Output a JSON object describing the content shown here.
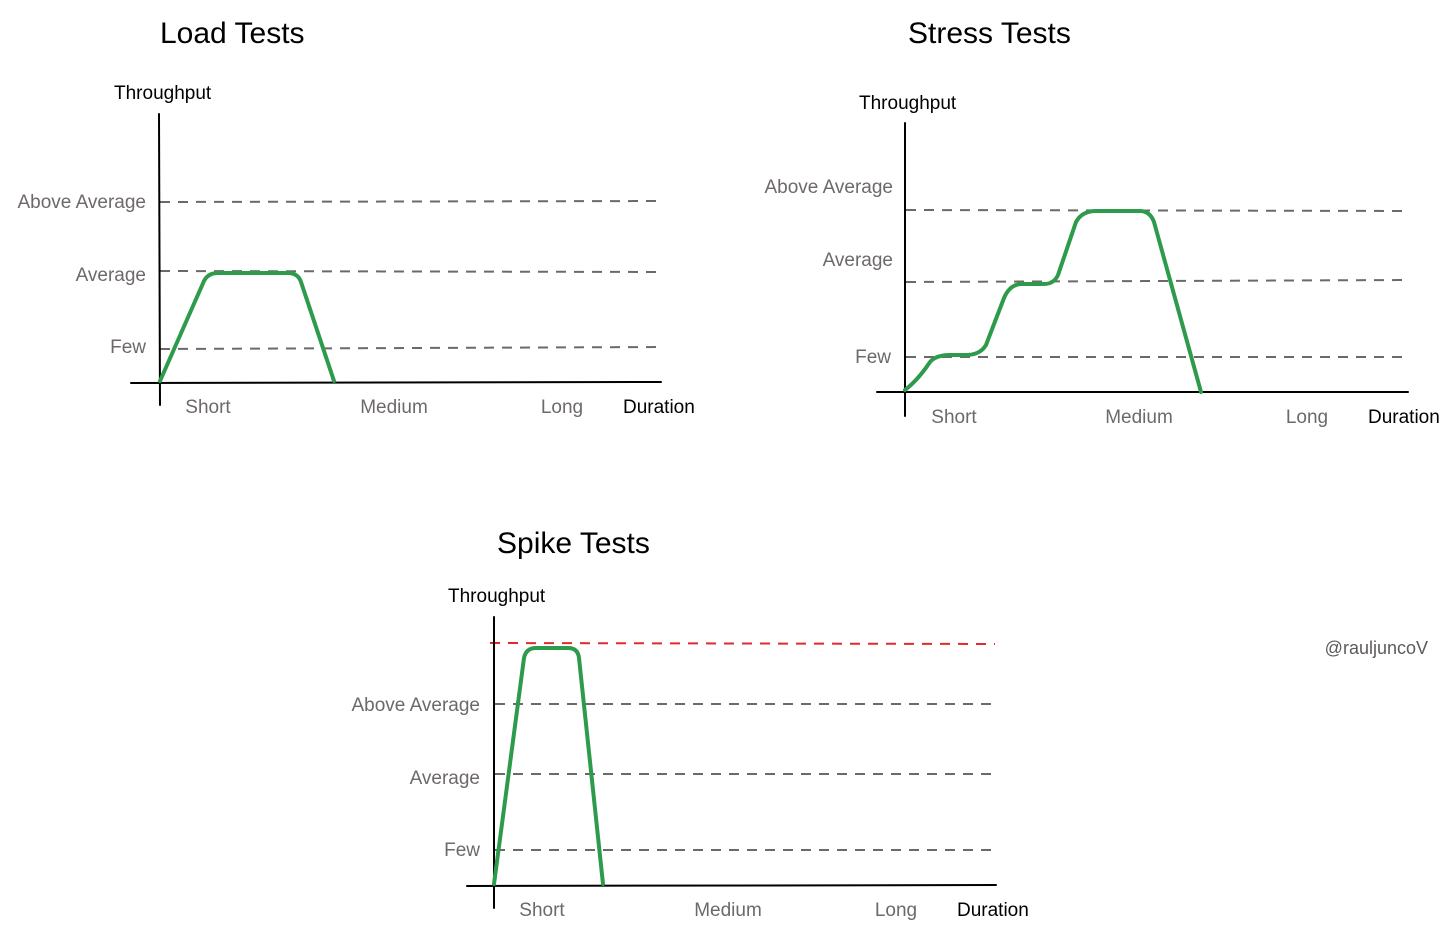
{
  "colors": {
    "curve": "#2e9b4c",
    "gridline": "#6e6969",
    "spike_limit": "#e02b2b",
    "axis": "#000000"
  },
  "credit": "@rauljuncoV",
  "charts": [
    {
      "title": "Load Tests",
      "ylabel": "Throughput",
      "xlabel": "Duration",
      "x_categories": [
        "Short",
        "Medium",
        "Long"
      ],
      "y_levels": [
        "Few",
        "Average",
        "Above Average"
      ],
      "has_limit_line": false
    },
    {
      "title": "Stress Tests",
      "ylabel": "Throughput",
      "xlabel": "Duration",
      "x_categories": [
        "Short",
        "Medium",
        "Long"
      ],
      "y_levels": [
        "Few",
        "Average",
        "Above Average"
      ],
      "has_limit_line": false
    },
    {
      "title": "Spike Tests",
      "ylabel": "Throughput",
      "xlabel": "Duration",
      "x_categories": [
        "Short",
        "Medium",
        "Long"
      ],
      "y_levels": [
        "Few",
        "Average",
        "Above Average"
      ],
      "has_limit_line": true
    }
  ]
}
